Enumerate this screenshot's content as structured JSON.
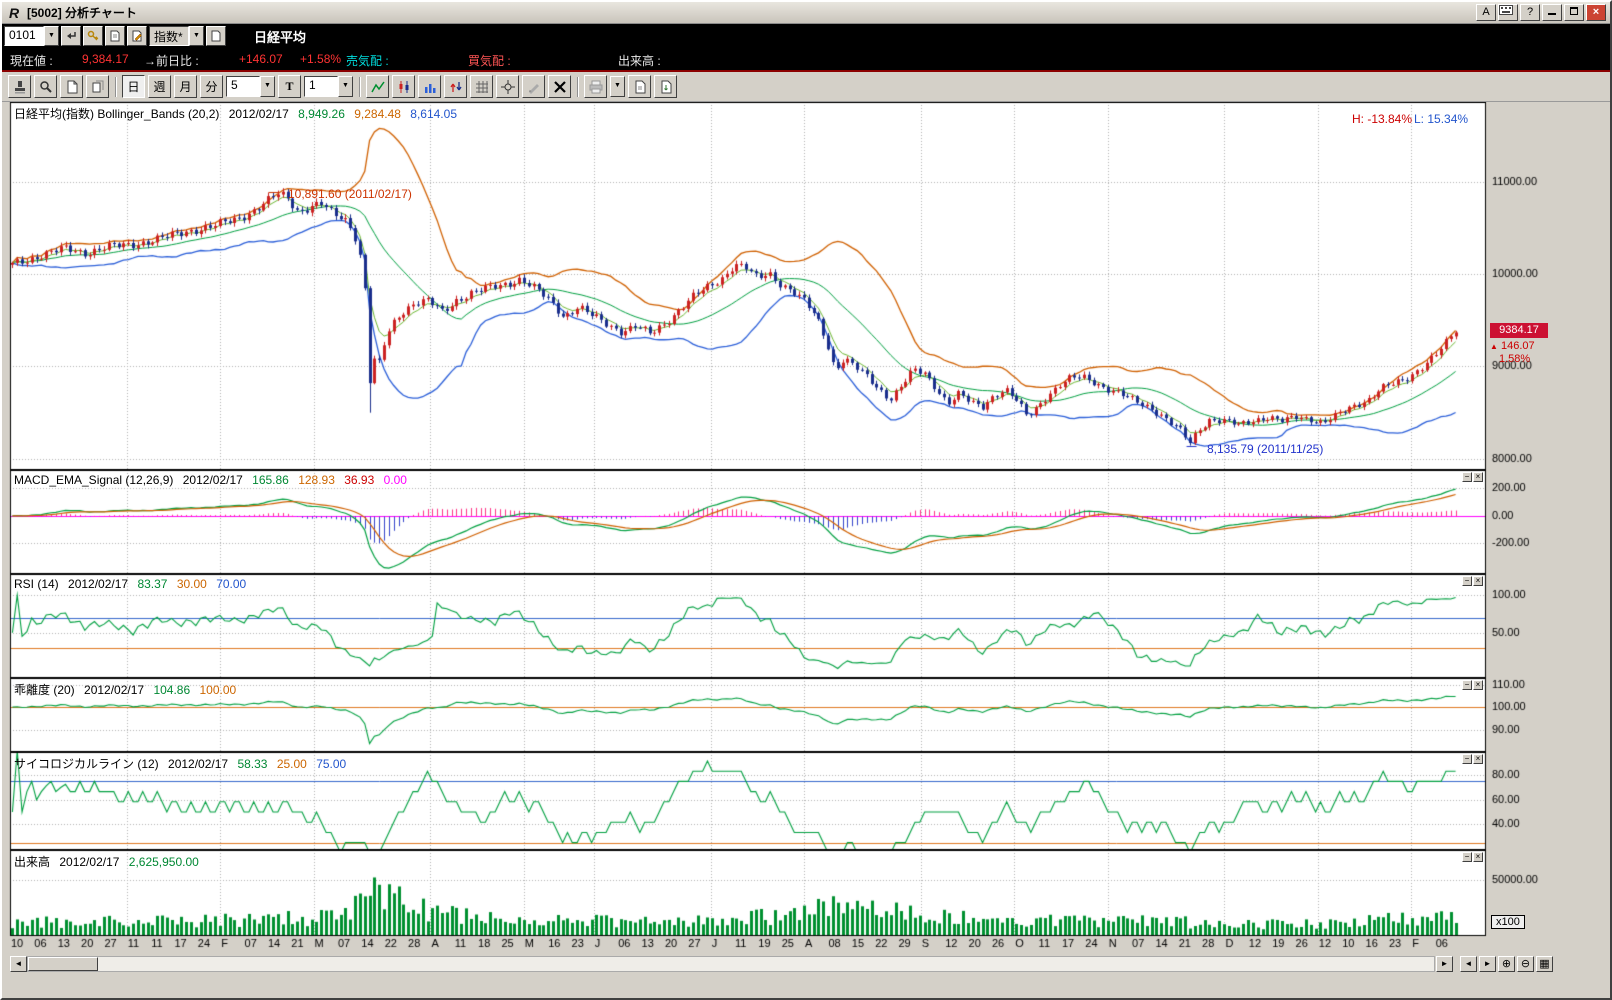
{
  "titlebar": {
    "title": "[5002] 分析チャート"
  },
  "window_controls": {
    "a": "A",
    "help": "?"
  },
  "quotebar": {
    "code": "0101",
    "category": "指数*",
    "instrument": "日経平均"
  },
  "infobar": {
    "current_label": "現在値 :",
    "current_value": "9,384.17",
    "change_label": "→前日比 :",
    "change_value": "+146.07",
    "change_pct": "+1.58%",
    "ask_label": "売気配 :",
    "bid_label": "買気配 :",
    "volume_label": "出来高 :"
  },
  "toolbar": {
    "day": "日",
    "week": "週",
    "month": "月",
    "minute": "分",
    "bars_select": "5",
    "t_button": "T",
    "scale_select": "1"
  },
  "ui": {
    "down_arrow": "▼",
    "up": "▲",
    "left_arrow": "◄",
    "right_arrow": "►",
    "zoom_in": "⊕",
    "zoom_out": "⊖",
    "grid": "▦",
    "minimize_glyph": "−",
    "close_glyph": "×"
  },
  "colors": {
    "candle_up": "#cc2222",
    "candle_down": "#1a2e8c",
    "bb_mid": "#00a040",
    "bb_upper": "#d06000",
    "bb_lower": "#2b5fd9",
    "ema_fast": "#6cb832",
    "macd": "#00a040",
    "macd_signal": "#d06000",
    "hist_pos": "#ff3388",
    "hist_neg": "#3344cc",
    "zero": "#ff00ff",
    "rsi": "#00a040",
    "rsi_upper": "#3366cc",
    "rsi_lower": "#e07820",
    "kairi": "#00a040",
    "kairi_base": "#e07820",
    "psych": "#00a040",
    "psych_upper": "#3366cc",
    "psych_lower": "#e07820",
    "volume": "#009030",
    "grid": "#b0b0b0",
    "tag_bg": "#cc1133"
  },
  "chart_data": [
    {
      "id": "price",
      "type": "candlestick",
      "title": "日経平均(指数) Bollinger_Bands (20,2)",
      "date": "2012/02/17",
      "legend": {
        "mid": "8,949.26",
        "upper": "9,284.48",
        "lower": "8,614.05"
      },
      "high_label": "H: -13.84%",
      "low_label": "L: 15.34%",
      "last": {
        "price": "9384.17",
        "change": "146.07",
        "pct": "1.58%"
      },
      "ylim": [
        7876,
        11863
      ],
      "yticks": [
        {
          "v": 11000,
          "label": "11000.00"
        },
        {
          "v": 10000,
          "label": "10000.00"
        },
        {
          "v": 9000,
          "label": "9000.00"
        },
        {
          "v": 8000,
          "label": "8000.00"
        }
      ],
      "annotations": [
        {
          "text": "10,891.60 (2011/02/17)",
          "x": 0.182,
          "value": 10891.6,
          "color": "#cc3300"
        },
        {
          "text": "8,135.79 (2011/11/25)",
          "x": 0.816,
          "value": 8135.79,
          "color": "#2233cc"
        }
      ],
      "anchors": [
        [
          0.0,
          10100
        ],
        [
          0.01,
          10150
        ],
        [
          0.02,
          10210
        ],
        [
          0.035,
          10270
        ],
        [
          0.05,
          10230
        ],
        [
          0.065,
          10290
        ],
        [
          0.08,
          10310
        ],
        [
          0.095,
          10360
        ],
        [
          0.11,
          10410
        ],
        [
          0.125,
          10480
        ],
        [
          0.14,
          10520
        ],
        [
          0.155,
          10590
        ],
        [
          0.168,
          10700
        ],
        [
          0.178,
          10800
        ],
        [
          0.184,
          10860
        ],
        [
          0.19,
          10830
        ],
        [
          0.198,
          10680
        ],
        [
          0.206,
          10730
        ],
        [
          0.214,
          10760
        ],
        [
          0.222,
          10640
        ],
        [
          0.23,
          10600
        ],
        [
          0.236,
          10480
        ],
        [
          0.24,
          10280
        ],
        [
          0.2435,
          9950
        ],
        [
          0.246,
          9520
        ],
        [
          0.248,
          8610
        ],
        [
          0.2505,
          9080
        ],
        [
          0.253,
          8950
        ],
        [
          0.257,
          9210
        ],
        [
          0.262,
          9420
        ],
        [
          0.268,
          9560
        ],
        [
          0.278,
          9690
        ],
        [
          0.288,
          9710
        ],
        [
          0.298,
          9580
        ],
        [
          0.308,
          9720
        ],
        [
          0.318,
          9800
        ],
        [
          0.33,
          9840
        ],
        [
          0.342,
          9890
        ],
        [
          0.352,
          9950
        ],
        [
          0.362,
          9840
        ],
        [
          0.372,
          9710
        ],
        [
          0.382,
          9540
        ],
        [
          0.392,
          9650
        ],
        [
          0.402,
          9540
        ],
        [
          0.412,
          9450
        ],
        [
          0.422,
          9380
        ],
        [
          0.432,
          9440
        ],
        [
          0.442,
          9340
        ],
        [
          0.452,
          9460
        ],
        [
          0.462,
          9620
        ],
        [
          0.472,
          9760
        ],
        [
          0.482,
          9850
        ],
        [
          0.492,
          9960
        ],
        [
          0.5,
          10110
        ],
        [
          0.508,
          10070
        ],
        [
          0.516,
          9940
        ],
        [
          0.524,
          10010
        ],
        [
          0.532,
          9900
        ],
        [
          0.54,
          9820
        ],
        [
          0.55,
          9680
        ],
        [
          0.558,
          9500
        ],
        [
          0.564,
          9280
        ],
        [
          0.57,
          8960
        ],
        [
          0.576,
          9090
        ],
        [
          0.584,
          8990
        ],
        [
          0.592,
          8880
        ],
        [
          0.6,
          8760
        ],
        [
          0.608,
          8650
        ],
        [
          0.616,
          8790
        ],
        [
          0.624,
          8950
        ],
        [
          0.632,
          8920
        ],
        [
          0.64,
          8770
        ],
        [
          0.648,
          8600
        ],
        [
          0.656,
          8700
        ],
        [
          0.664,
          8600
        ],
        [
          0.672,
          8560
        ],
        [
          0.68,
          8690
        ],
        [
          0.688,
          8750
        ],
        [
          0.696,
          8620
        ],
        [
          0.703,
          8450
        ],
        [
          0.71,
          8560
        ],
        [
          0.718,
          8700
        ],
        [
          0.726,
          8800
        ],
        [
          0.734,
          8870
        ],
        [
          0.742,
          8880
        ],
        [
          0.75,
          8830
        ],
        [
          0.758,
          8760
        ],
        [
          0.768,
          8690
        ],
        [
          0.778,
          8620
        ],
        [
          0.788,
          8560
        ],
        [
          0.796,
          8470
        ],
        [
          0.804,
          8360
        ],
        [
          0.81,
          8290
        ],
        [
          0.816,
          8170
        ],
        [
          0.822,
          8320
        ],
        [
          0.83,
          8430
        ],
        [
          0.84,
          8400
        ],
        [
          0.85,
          8360
        ],
        [
          0.86,
          8420
        ],
        [
          0.87,
          8450
        ],
        [
          0.88,
          8400
        ],
        [
          0.89,
          8450
        ],
        [
          0.9,
          8430
        ],
        [
          0.908,
          8390
        ],
        [
          0.916,
          8450
        ],
        [
          0.924,
          8520
        ],
        [
          0.932,
          8590
        ],
        [
          0.94,
          8650
        ],
        [
          0.948,
          8760
        ],
        [
          0.956,
          8800
        ],
        [
          0.964,
          8840
        ],
        [
          0.972,
          8940
        ],
        [
          0.98,
          9050
        ],
        [
          0.986,
          9120
        ],
        [
          0.991,
          9200
        ],
        [
          0.996,
          9300
        ],
        [
          1.0,
          9384
        ]
      ]
    },
    {
      "id": "macd",
      "type": "line",
      "title": "MACD_EMA_Signal (12,26,9)",
      "date": "2012/02/17",
      "values": {
        "macd": "165.86",
        "ema": "128.93",
        "signal": "36.93",
        "zero": "0.00"
      },
      "ylim": [
        -422,
        334
      ],
      "yticks": [
        {
          "v": 200,
          "label": "200.00"
        },
        {
          "v": 0,
          "label": "0.00"
        },
        {
          "v": -200,
          "label": "-200.00"
        }
      ]
    },
    {
      "id": "rsi",
      "type": "line",
      "title": "RSI (14)",
      "date": "2012/02/17",
      "values": {
        "rsi": "83.37",
        "lower": "30.00",
        "upper": "70.00"
      },
      "levels": {
        "upper": 70,
        "lower": 30
      },
      "ylim": [
        -10,
        128
      ],
      "yticks": [
        {
          "v": 100,
          "label": "100.00"
        },
        {
          "v": 50,
          "label": "50.00"
        }
      ]
    },
    {
      "id": "kairi",
      "type": "line",
      "title": "乖離度 (20)",
      "date": "2012/02/17",
      "values": {
        "value": "104.86",
        "base": "100.00"
      },
      "base": 100,
      "ylim": [
        80,
        113
      ],
      "yticks": [
        {
          "v": 110,
          "label": "110.00"
        },
        {
          "v": 100,
          "label": "100.00"
        },
        {
          "v": 90,
          "label": "90.00"
        }
      ]
    },
    {
      "id": "psych",
      "type": "line",
      "title": "サイコロジカルライン (12)",
      "date": "2012/02/17",
      "values": {
        "value": "58.33",
        "lower": "25.00",
        "upper": "75.00"
      },
      "levels": {
        "upper": 75,
        "lower": 25
      },
      "ylim": [
        19,
        99
      ],
      "yticks": [
        {
          "v": 80,
          "label": "80.00"
        },
        {
          "v": 60,
          "label": "60.00"
        },
        {
          "v": 40,
          "label": "40.00"
        }
      ]
    },
    {
      "id": "volume",
      "type": "bar",
      "title": "出来高",
      "date": "2012/02/17",
      "value": "2,625,950.00",
      "unit": "x100",
      "ylim": [
        0,
        77000
      ],
      "yticks": [
        {
          "v": 50000,
          "label": "50000.00"
        }
      ],
      "anchors": [
        [
          0,
          12000
        ],
        [
          0.1,
          13000
        ],
        [
          0.18,
          15000
        ],
        [
          0.23,
          17000
        ],
        [
          0.242,
          30000
        ],
        [
          0.248,
          52000
        ],
        [
          0.255,
          46000
        ],
        [
          0.265,
          34000
        ],
        [
          0.28,
          24000
        ],
        [
          0.31,
          18000
        ],
        [
          0.36,
          15000
        ],
        [
          0.42,
          13000
        ],
        [
          0.47,
          14000
        ],
        [
          0.5,
          16000
        ],
        [
          0.545,
          18000
        ],
        [
          0.565,
          30000
        ],
        [
          0.59,
          24000
        ],
        [
          0.63,
          18000
        ],
        [
          0.68,
          15000
        ],
        [
          0.73,
          14000
        ],
        [
          0.79,
          13000
        ],
        [
          0.85,
          11000
        ],
        [
          0.9,
          10500
        ],
        [
          0.94,
          13000
        ],
        [
          0.97,
          16000
        ],
        [
          1.0,
          20000
        ]
      ]
    }
  ],
  "xaxis": {
    "labels": [
      {
        "t": "10"
      },
      {
        "t": "06"
      },
      {
        "t": "13"
      },
      {
        "t": "20"
      },
      {
        "t": "27"
      },
      {
        "t": "11",
        "g": true
      },
      {
        "t": "11"
      },
      {
        "t": "17"
      },
      {
        "t": "24"
      },
      {
        "t": "F",
        "g": true
      },
      {
        "t": "07"
      },
      {
        "t": "14"
      },
      {
        "t": "21"
      },
      {
        "t": "M",
        "g": true
      },
      {
        "t": "07"
      },
      {
        "t": "14"
      },
      {
        "t": "22"
      },
      {
        "t": "28"
      },
      {
        "t": "A",
        "g": true
      },
      {
        "t": "11"
      },
      {
        "t": "18"
      },
      {
        "t": "25"
      },
      {
        "t": "M",
        "g": true
      },
      {
        "t": "16"
      },
      {
        "t": "23"
      },
      {
        "t": "J",
        "g": true
      },
      {
        "t": "06"
      },
      {
        "t": "13"
      },
      {
        "t": "20"
      },
      {
        "t": "27"
      },
      {
        "t": "J",
        "g": true
      },
      {
        "t": "11"
      },
      {
        "t": "19"
      },
      {
        "t": "25"
      },
      {
        "t": "A",
        "g": true
      },
      {
        "t": "08"
      },
      {
        "t": "15"
      },
      {
        "t": "22"
      },
      {
        "t": "29"
      },
      {
        "t": "S",
        "g": true
      },
      {
        "t": "12"
      },
      {
        "t": "20"
      },
      {
        "t": "26"
      },
      {
        "t": "O",
        "g": true
      },
      {
        "t": "11"
      },
      {
        "t": "17"
      },
      {
        "t": "24"
      },
      {
        "t": "N",
        "g": true
      },
      {
        "t": "07"
      },
      {
        "t": "14"
      },
      {
        "t": "21"
      },
      {
        "t": "28"
      },
      {
        "t": "D",
        "g": true
      },
      {
        "t": "12"
      },
      {
        "t": "19"
      },
      {
        "t": "26"
      },
      {
        "t": "12",
        "g": true
      },
      {
        "t": "10"
      },
      {
        "t": "16"
      },
      {
        "t": "23"
      },
      {
        "t": "F",
        "g": true
      },
      {
        "t": "06"
      }
    ]
  }
}
